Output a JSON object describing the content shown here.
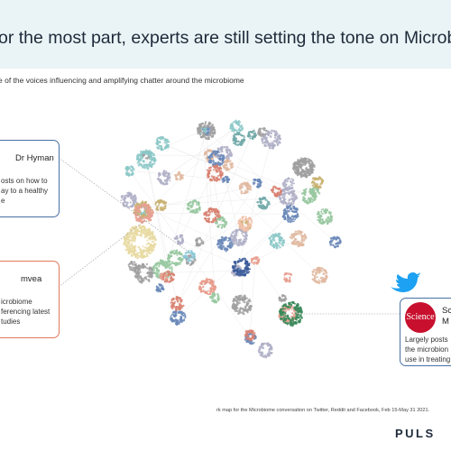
{
  "header": {
    "title": "or the most part, experts are still setting the tone on Microbiome",
    "subtitle": "e of the voices influencing and amplifying chatter around the microbiome"
  },
  "callouts": [
    {
      "name": "Dr Hyman",
      "lines": [
        "osts on how to",
        "ay to a healthy",
        "e"
      ]
    },
    {
      "name": "mvea",
      "lines": [
        "icrobiome",
        "ferencing latest",
        "tudies"
      ]
    },
    {
      "logo": "Science",
      "name_lines": [
        "Sc",
        "M"
      ],
      "lines": [
        "Largely posts",
        "the microbion",
        "use in treating"
      ]
    }
  ],
  "footer": {
    "caption": "rk map for the Microbiome conversation on Twitter, Reddit and Facebook, Feb 15-May 31 2021.",
    "brand": "PULS"
  }
}
